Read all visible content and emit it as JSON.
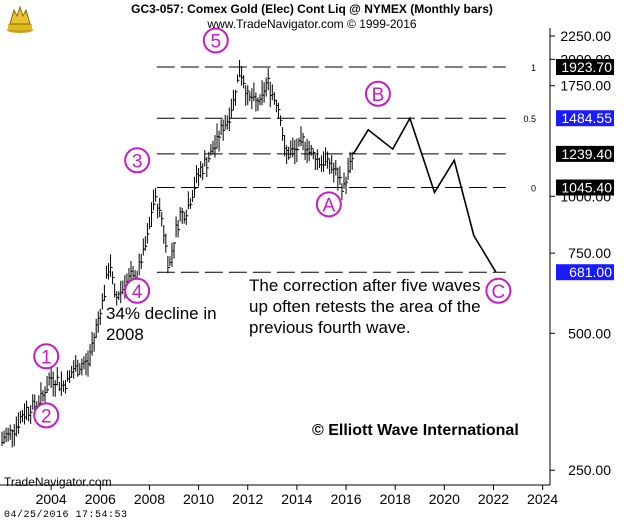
{
  "header": {
    "title": "GC3-057:  Comex Gold (Elec) Cont Liq @ NYMEX  (Monthly bars)",
    "subtitle": "www.TradeNavigator.com © 1999-2016"
  },
  "footer": {
    "brand": "TradeNavigator.com",
    "timestamp": "04/25/2016  17:54:53"
  },
  "annotations": {
    "decline": "34% decline in 2008",
    "correction": "The correction after five waves up often retests the area of the previous fourth wave.",
    "copyright": "© Elliott Wave International"
  },
  "colors": {
    "label_circle": "#c71bc7",
    "highlight_box": "#1a1aff",
    "price_box": "#000000",
    "bars": "#000000"
  },
  "chart_data": {
    "type": "line",
    "title": "GC3-057:  Comex Gold (Elec) Cont Liq @ NYMEX  (Monthly bars)",
    "y_scale": "log",
    "ylim": [
      232,
      2320
    ],
    "xlim": [
      2002.0,
      2024.3
    ],
    "y_ticks": [
      {
        "value": 250,
        "label": "250.00"
      },
      {
        "value": 500,
        "label": "500.00"
      },
      {
        "value": 750,
        "label": "750.00"
      },
      {
        "value": 1000,
        "label": "1000.00"
      },
      {
        "value": 1750,
        "label": "1750.00"
      },
      {
        "value": 2000,
        "label": "2000.00"
      },
      {
        "value": 2250,
        "label": "2250.00"
      }
    ],
    "x_ticks": [
      {
        "value": 2004,
        "label": "2004"
      },
      {
        "value": 2006,
        "label": "2006"
      },
      {
        "value": 2008,
        "label": "2008"
      },
      {
        "value": 2010,
        "label": "2010"
      },
      {
        "value": 2012,
        "label": "2012"
      },
      {
        "value": 2014,
        "label": "2014"
      },
      {
        "value": 2016,
        "label": "2016"
      },
      {
        "value": 2018,
        "label": "2018"
      },
      {
        "value": 2020,
        "label": "2020"
      },
      {
        "value": 2022,
        "label": "2022"
      },
      {
        "value": 2024,
        "label": "2024"
      }
    ],
    "price_history": {
      "x": [
        2002.0,
        2002.5,
        2003.0,
        2003.5,
        2004.0,
        2004.5,
        2005.0,
        2005.5,
        2006.0,
        2006.4,
        2006.6,
        2007.0,
        2007.5,
        2007.9,
        2008.2,
        2008.5,
        2008.8,
        2009.2,
        2009.5,
        2010.0,
        2010.5,
        2011.0,
        2011.3,
        2011.7,
        2012.0,
        2012.5,
        2012.8,
        2013.3,
        2013.5,
        2013.9,
        2014.3,
        2014.6,
        2014.9,
        2015.3,
        2015.9,
        2016.3
      ],
      "y": [
        290,
        310,
        340,
        350,
        400,
        385,
        420,
        430,
        560,
        720,
        590,
        650,
        670,
        800,
        1000,
        900,
        700,
        900,
        930,
        1120,
        1240,
        1420,
        1530,
        1923.7,
        1650,
        1600,
        1790,
        1560,
        1250,
        1250,
        1320,
        1240,
        1200,
        1190,
        1045.4,
        1239.4
      ]
    },
    "projection": {
      "x": [
        2016.3,
        2016.9,
        2017.9,
        2018.6,
        2019.6,
        2020.4,
        2021.2,
        2022.1
      ],
      "y": [
        1239.4,
        1400,
        1270,
        1484.55,
        1020,
        1200,
        820,
        681
      ]
    },
    "levels": [
      {
        "value": 1923.7,
        "label": "1923.70",
        "fib": "1",
        "highlight": false
      },
      {
        "value": 1484.55,
        "label": "1484.55",
        "fib": "0.5",
        "highlight": true
      },
      {
        "value": 1239.4,
        "label": "1239.40",
        "fib": "",
        "highlight": false
      },
      {
        "value": 1045.4,
        "label": "1045.40",
        "fib": "0",
        "highlight": false
      },
      {
        "value": 681.0,
        "label": "681.00",
        "fib": "",
        "highlight": true
      }
    ],
    "wave_labels": [
      {
        "label": "1",
        "x": 2003.8,
        "y": 445
      },
      {
        "label": "2",
        "x": 2003.8,
        "y": 330
      },
      {
        "label": "3",
        "x": 2007.5,
        "y": 1200
      },
      {
        "label": "4",
        "x": 2007.5,
        "y": 620
      },
      {
        "label": "5",
        "x": 2010.7,
        "y": 2200
      },
      {
        "label": "A",
        "x": 2015.3,
        "y": 960
      },
      {
        "label": "B",
        "x": 2017.3,
        "y": 1680
      },
      {
        "label": "C",
        "x": 2022.2,
        "y": 620
      }
    ]
  }
}
